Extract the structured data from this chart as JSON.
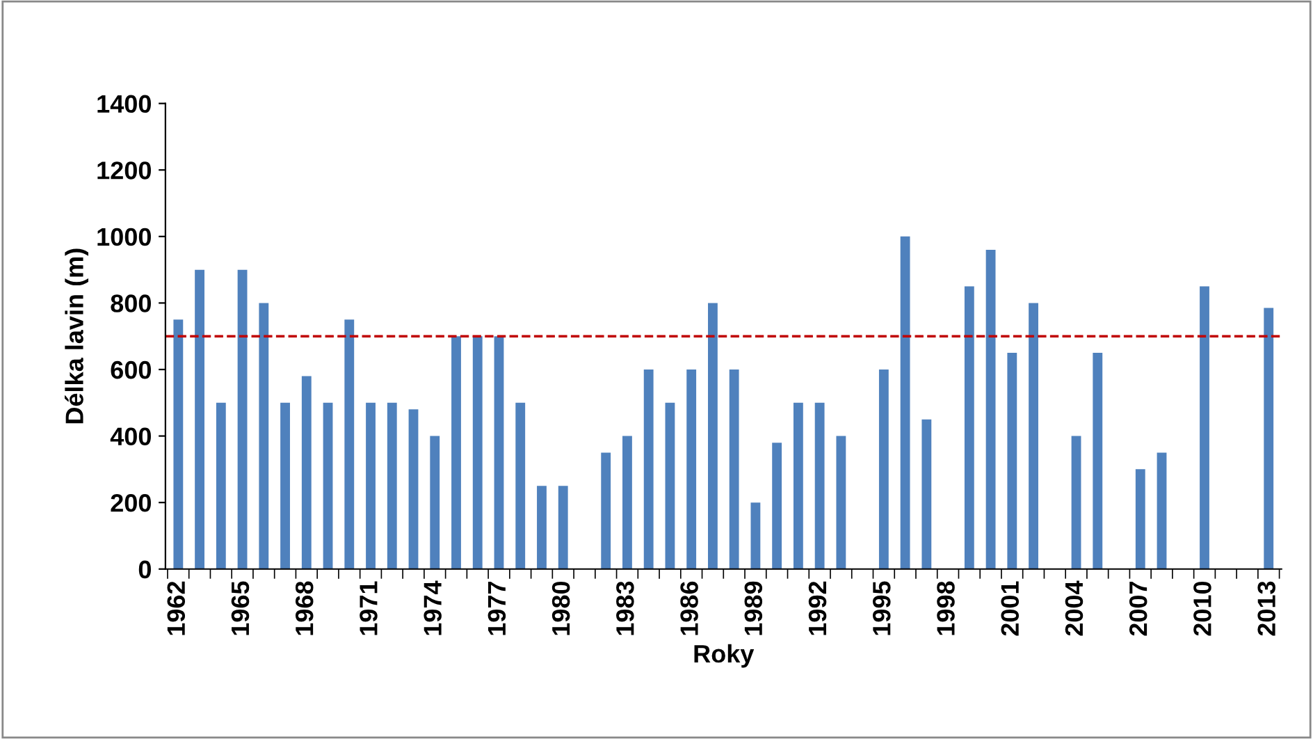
{
  "chart_data": {
    "type": "bar",
    "xlabel": "Roky",
    "ylabel": "Délka lavin (m)",
    "categories": [
      "1962",
      null,
      null,
      "1965",
      null,
      null,
      "1968",
      null,
      null,
      "1971",
      null,
      null,
      "1974",
      null,
      null,
      "1977",
      null,
      null,
      "1980",
      null,
      null,
      "1983",
      null,
      null,
      "1986",
      null,
      null,
      "1989",
      null,
      null,
      "1992",
      null,
      null,
      "1995",
      null,
      null,
      "1998",
      null,
      null,
      "2001",
      null,
      null,
      "2004",
      null,
      null,
      "2007",
      null,
      null,
      "2010",
      null,
      null,
      "2013"
    ],
    "values": [
      750,
      900,
      500,
      900,
      800,
      500,
      580,
      500,
      750,
      500,
      500,
      480,
      400,
      700,
      700,
      700,
      500,
      250,
      250,
      null,
      350,
      400,
      600,
      500,
      600,
      800,
      600,
      200,
      380,
      500,
      500,
      400,
      null,
      600,
      1000,
      450,
      null,
      850,
      960,
      650,
      800,
      null,
      400,
      650,
      null,
      300,
      350,
      null,
      850,
      null,
      null,
      785
    ],
    "color": "#4f81bd",
    "ylim": [
      0,
      1400
    ],
    "yticks": [
      0,
      200,
      400,
      600,
      800,
      1000,
      1200,
      1400
    ],
    "grid": false,
    "ref_lines": [
      {
        "axis": "y",
        "value": 700,
        "color": "#c00000",
        "line_style": "dashed"
      }
    ]
  }
}
